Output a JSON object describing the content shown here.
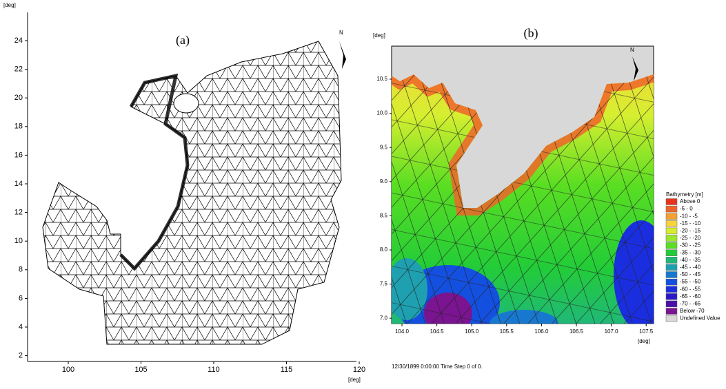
{
  "panel_a": {
    "label": "(a)",
    "y_unit": "[deg]",
    "x_unit": "[deg]",
    "yticks": [
      "24",
      "22",
      "20",
      "18",
      "16",
      "14",
      "12",
      "10",
      "8",
      "6",
      "4",
      "2"
    ],
    "xticks": [
      "100",
      "105",
      "110",
      "115",
      "120"
    ],
    "north": "N"
  },
  "panel_b": {
    "label": "(b)",
    "y_unit": "[deg]",
    "x_unit": "[deg]",
    "yticks": [
      "10.5",
      "10.0",
      "9.5",
      "9.0",
      "8.5",
      "8.0",
      "7.5",
      "7.0"
    ],
    "xticks": [
      "104.0",
      "104.5",
      "105.0",
      "105.5",
      "106.0",
      "106.5",
      "107.0",
      "107.5"
    ],
    "north": "N",
    "status": "12/30/1899 0:00:00  Time Step 0 of 0.",
    "legend": {
      "title": "Bathymetry [m]",
      "items": [
        {
          "label": "Above  0",
          "color": "#e8321e"
        },
        {
          "label": "-5 -  0",
          "color": "#f0642a"
        },
        {
          "label": "-10 -  -5",
          "color": "#f5a030"
        },
        {
          "label": "-15 - -10",
          "color": "#f8d43a"
        },
        {
          "label": "-20 - -15",
          "color": "#d6ee30"
        },
        {
          "label": "-25 - -20",
          "color": "#9ae828"
        },
        {
          "label": "-30 - -25",
          "color": "#5ade22"
        },
        {
          "label": "-35 - -30",
          "color": "#22cc38"
        },
        {
          "label": "-40 - -35",
          "color": "#20b878"
        },
        {
          "label": "-45 - -40",
          "color": "#1ea0b0"
        },
        {
          "label": "-50 - -45",
          "color": "#1878d0"
        },
        {
          "label": "-55 - -50",
          "color": "#1450e0"
        },
        {
          "label": "-60 - -55",
          "color": "#1a2ee0"
        },
        {
          "label": "-65 - -60",
          "color": "#2a18c8"
        },
        {
          "label": "-70 - -65",
          "color": "#4a10a8"
        },
        {
          "label": "Below -70",
          "color": "#7a1490"
        },
        {
          "label": "Undefined Value",
          "color": "#d8d8d8"
        }
      ]
    }
  }
}
